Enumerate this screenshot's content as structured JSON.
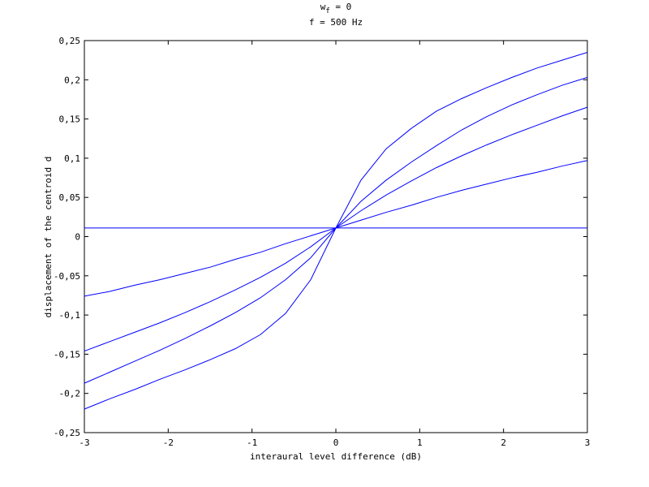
{
  "chart_data": {
    "type": "line",
    "title": [
      "w",
      "f",
      " = 0"
    ],
    "subtitle": "f = 500 Hz",
    "x_label": "interaural level difference (dB)",
    "y_label": "displacement of the centroid d",
    "x": [
      -3,
      -2.7,
      -2.4,
      -2.1,
      -1.8,
      -1.5,
      -1.2,
      -0.9,
      -0.6,
      -0.3,
      0,
      0.3,
      0.6,
      0.9,
      1.2,
      1.5,
      1.8,
      2.1,
      2.4,
      2.7,
      3
    ],
    "series": [
      {
        "color": "#0000ff",
        "values": [
          0.011,
          0.011,
          0.011,
          0.011,
          0.011,
          0.011,
          0.011,
          0.011,
          0.011,
          0.011,
          0.011,
          0.011,
          0.011,
          0.011,
          0.011,
          0.011,
          0.011,
          0.011,
          0.011,
          0.011,
          0.011
        ]
      },
      {
        "color": "#0000ff",
        "values": [
          -0.076,
          -0.07,
          -0.062,
          -0.055,
          -0.047,
          -0.039,
          -0.029,
          -0.02,
          -0.009,
          0.001,
          0.011,
          0.021,
          0.031,
          0.04,
          0.05,
          0.059,
          0.067,
          0.075,
          0.082,
          0.09,
          0.097
        ]
      },
      {
        "color": "#0000ff",
        "values": [
          -0.146,
          -0.134,
          -0.122,
          -0.11,
          -0.097,
          -0.083,
          -0.068,
          -0.052,
          -0.034,
          -0.013,
          0.011,
          0.033,
          0.053,
          0.071,
          0.088,
          0.103,
          0.117,
          0.13,
          0.142,
          0.154,
          0.165
        ]
      },
      {
        "color": "#0000ff",
        "values": [
          -0.187,
          -0.173,
          -0.159,
          -0.145,
          -0.13,
          -0.114,
          -0.097,
          -0.078,
          -0.055,
          -0.027,
          0.011,
          0.045,
          0.072,
          0.095,
          0.116,
          0.136,
          0.153,
          0.168,
          0.181,
          0.193,
          0.203
        ]
      },
      {
        "color": "#0000ff",
        "values": [
          -0.22,
          -0.207,
          -0.195,
          -0.182,
          -0.17,
          -0.157,
          -0.143,
          -0.125,
          -0.098,
          -0.055,
          0.011,
          0.072,
          0.112,
          0.138,
          0.16,
          0.176,
          0.19,
          0.203,
          0.215,
          0.225,
          0.235
        ]
      }
    ],
    "xlim": [
      -3,
      3
    ],
    "xticks": [
      -3,
      -2,
      -1,
      0,
      1,
      2,
      3
    ],
    "ylim": [
      -0.25,
      0.25
    ],
    "yticks": [
      {
        "value": -0.25,
        "label": "-0,25"
      },
      {
        "value": -0.2,
        "label": "-0,2"
      },
      {
        "value": -0.15,
        "label": "-0,15"
      },
      {
        "value": -0.1,
        "label": "-0,1"
      },
      {
        "value": -0.05,
        "label": "-0,05"
      },
      0,
      {
        "value": 0.05,
        "label": "0,05"
      },
      {
        "value": 0.1,
        "label": "0,1"
      },
      {
        "value": 0.15,
        "label": "0,15"
      },
      {
        "value": 0.2,
        "label": "0,2"
      },
      {
        "value": 0.25,
        "label": "0,25"
      }
    ],
    "grid": false
  }
}
